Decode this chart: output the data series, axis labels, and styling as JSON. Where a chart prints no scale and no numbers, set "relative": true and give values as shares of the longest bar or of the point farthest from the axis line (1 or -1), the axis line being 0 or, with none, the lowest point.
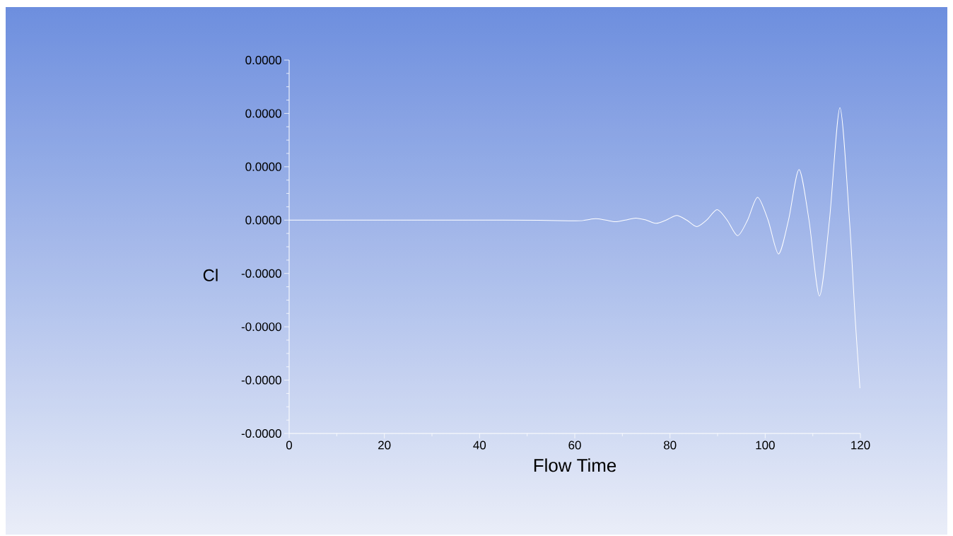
{
  "chart_data": {
    "type": "line",
    "xlabel": "Flow Time",
    "ylabel": "Cl",
    "color": "#ffffff",
    "relative": true,
    "x": [
      0,
      45,
      60.1,
      62.2,
      64.4,
      66.5,
      68.5,
      70.6,
      72.8,
      75,
      77.1,
      79.2,
      81.4,
      83.5,
      85.6,
      87.7,
      89.9,
      92,
      94.2,
      96.3,
      98.4,
      100.6,
      102.8,
      104.9,
      107.1,
      109.2,
      111.4,
      113.5,
      115.7,
      117.7,
      118.9,
      119.9
    ],
    "values": [
      0.655,
      0.655,
      0.653,
      0.655,
      0.659,
      0.655,
      0.65,
      0.655,
      0.661,
      0.655,
      0.645,
      0.655,
      0.669,
      0.655,
      0.635,
      0.655,
      0.687,
      0.655,
      0.607,
      0.655,
      0.725,
      0.655,
      0.551,
      0.655,
      0.81,
      0.655,
      0.422,
      0.655,
      1,
      0.655,
      0.353,
      0.139
    ],
    "xlim": [
      0,
      120
    ],
    "xticks": [
      0,
      20,
      40,
      60,
      80,
      100,
      120
    ],
    "annotations": [
      "0.0000",
      "0.0000",
      "0.0000",
      "0.0000",
      "-0.0000",
      "-0.0000",
      "-0.0000",
      "-0.0000"
    ]
  }
}
